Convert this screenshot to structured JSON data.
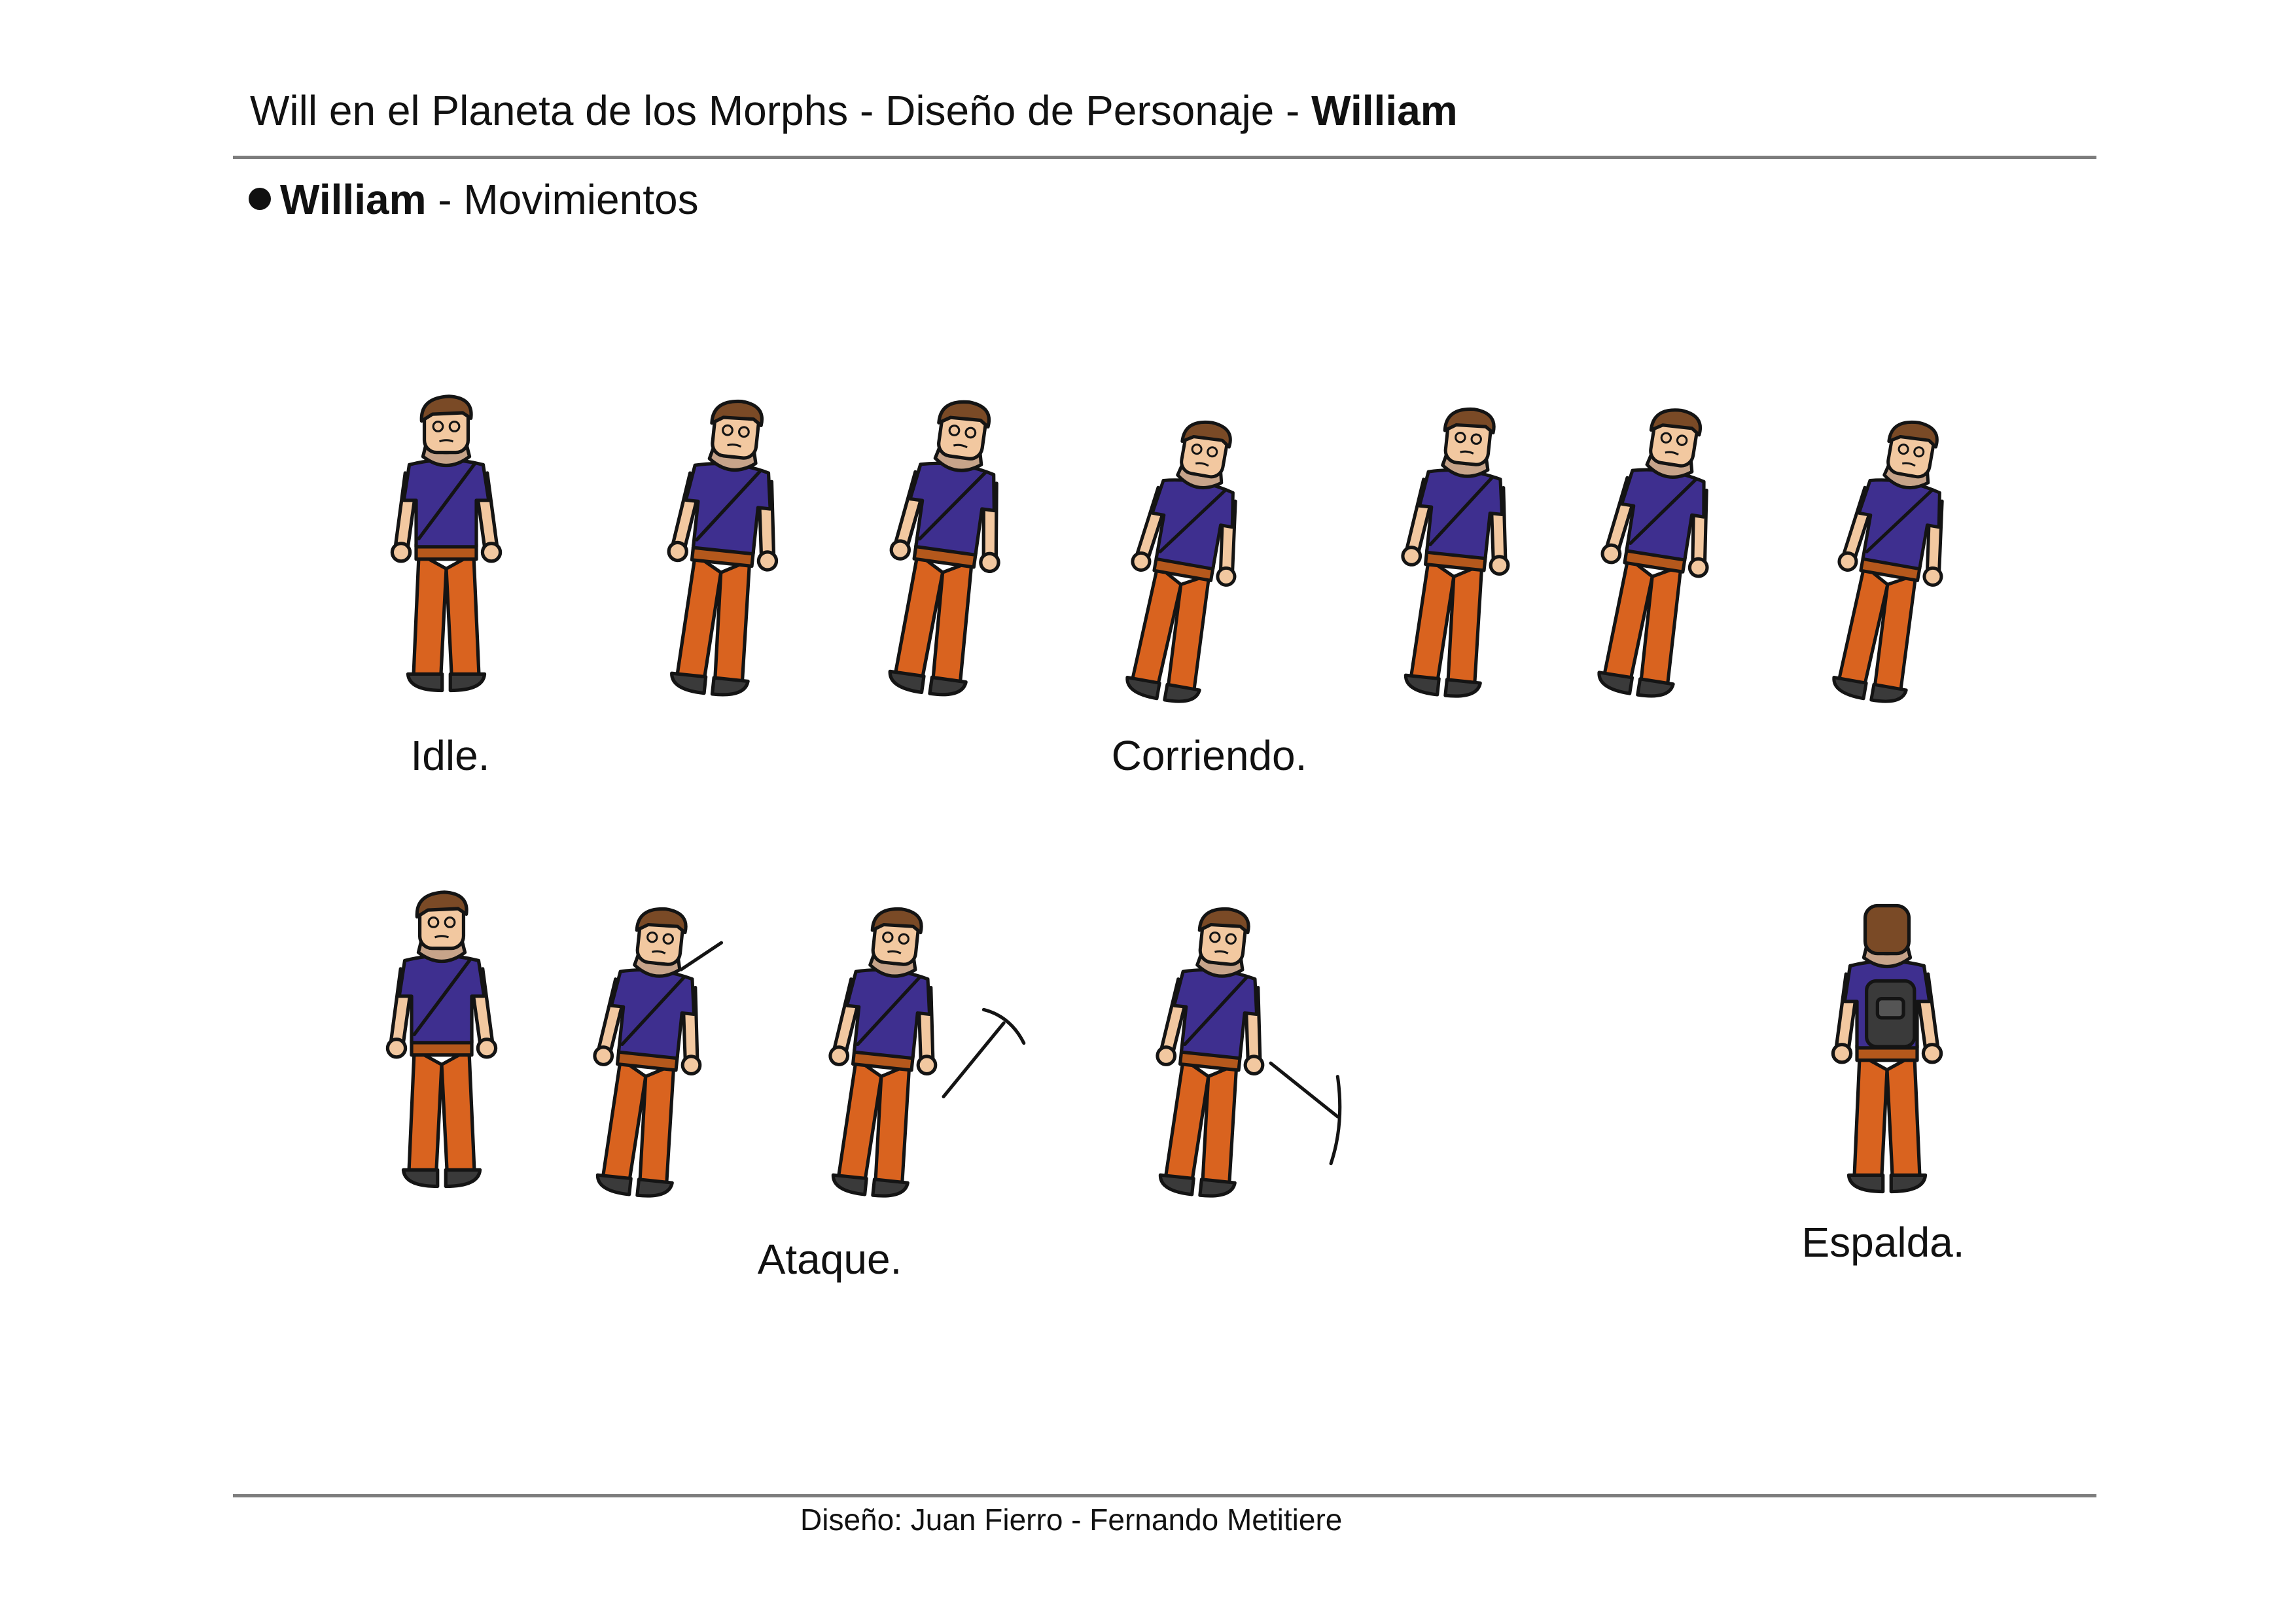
{
  "header": {
    "title_prefix": "Will en el Planeta de los Morphs - Diseño de Personaje - ",
    "title_name": "William"
  },
  "section": {
    "name": "William",
    "subtitle": " - Movimientos"
  },
  "labels": {
    "idle": "Idle.",
    "running": "Corriendo.",
    "attack": "Ataque.",
    "back": "Espalda."
  },
  "footer": {
    "credits": "Diseño: Juan Fierro - Fernando Metitiere"
  },
  "colors": {
    "shirt": "#3e2f8f",
    "pants": "#d9631f",
    "skin": "#f2c8a0",
    "hair": "#7a4a26",
    "scarf": "#c7a48a",
    "shoes": "#3a3a3a",
    "rule": "#7d7d7d"
  }
}
